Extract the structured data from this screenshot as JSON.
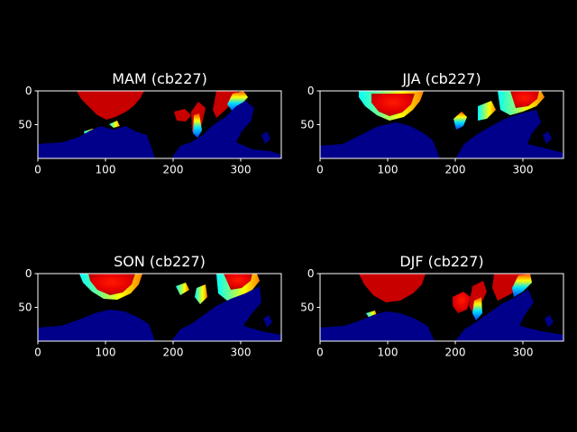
{
  "figure": {
    "background": "#000000",
    "foreground": "#ffffff",
    "colormap": "jet"
  },
  "chart_data": [
    {
      "type": "heatmap",
      "title": "MAM (cb227)",
      "xlim": [
        0,
        360
      ],
      "ylim": [
        100,
        0
      ],
      "xticks": [
        0,
        100,
        200,
        300
      ],
      "yticks": [
        0,
        50
      ],
      "grid": false,
      "legend": "none"
    },
    {
      "type": "heatmap",
      "title": "JJA (cb227)",
      "xlim": [
        0,
        360
      ],
      "ylim": [
        100,
        0
      ],
      "xticks": [
        0,
        100,
        200,
        300
      ],
      "yticks": [
        0,
        50
      ],
      "grid": false,
      "legend": "none"
    },
    {
      "type": "heatmap",
      "title": "SON (cb227)",
      "xlim": [
        0,
        360
      ],
      "ylim": [
        100,
        0
      ],
      "xticks": [
        0,
        100,
        200,
        300
      ],
      "yticks": [
        0,
        50
      ],
      "grid": false,
      "legend": "none"
    },
    {
      "type": "heatmap",
      "title": "DJF (cb227)",
      "xlim": [
        0,
        360
      ],
      "ylim": [
        100,
        0
      ],
      "xticks": [
        0,
        100,
        200,
        300
      ],
      "yticks": [
        0,
        50
      ],
      "grid": false,
      "legend": "none"
    }
  ]
}
